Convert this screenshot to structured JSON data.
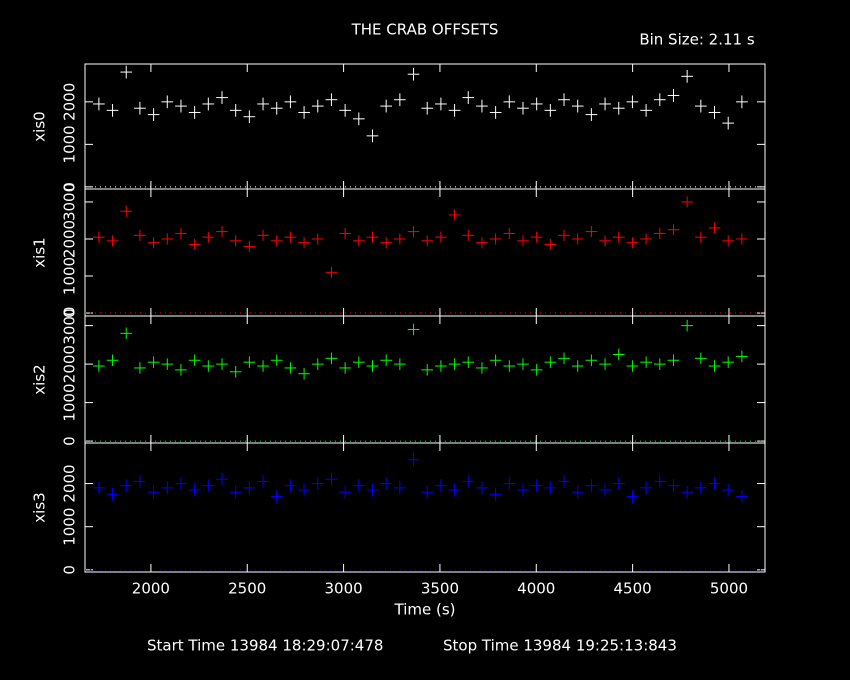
{
  "chart_data": {
    "type": "scatter",
    "title": "THE CRAB OFFSETS",
    "subtitle": "Bin Size: 2.11 s",
    "x_label": "Time (s)",
    "annotations": [
      "Start Time 13984 18:29:07:478",
      "Stop Time 13984 19:25:13:843"
    ],
    "xlim": [
      1658,
      5187
    ],
    "xticks": [
      2000,
      2500,
      3000,
      3500,
      4000,
      4500,
      5000
    ],
    "x": [
      1730,
      1801,
      1872,
      1943,
      2014,
      2085,
      2156,
      2227,
      2298,
      2369,
      2440,
      2511,
      2582,
      2653,
      2724,
      2795,
      2866,
      2937,
      3008,
      3079,
      3150,
      3221,
      3292,
      3363,
      3434,
      3505,
      3576,
      3647,
      3718,
      3789,
      3860,
      3931,
      4002,
      4073,
      4144,
      4215,
      4286,
      4357,
      4428,
      4499,
      4570,
      4641,
      4712,
      4783,
      4854,
      4925,
      4996,
      5067
    ],
    "series": [
      {
        "name": "xis0",
        "color": "#ffffff",
        "error": 150,
        "ylim": [
          -50,
          2890
        ],
        "yticks": [
          0,
          1000,
          2000
        ],
        "values": [
          1950,
          1800,
          2700,
          1850,
          1700,
          2000,
          1900,
          1750,
          1950,
          2100,
          1800,
          1650,
          1950,
          1850,
          2000,
          1750,
          1900,
          2050,
          1800,
          1600,
          1200,
          1900,
          2050,
          2650,
          1850,
          1950,
          1800,
          2100,
          1900,
          1750,
          2000,
          1850,
          1950,
          1800,
          2050,
          1900,
          1700,
          1950,
          1850,
          2000,
          1800,
          2050,
          2150,
          2600,
          1900,
          1750,
          1500,
          2000
        ]
      },
      {
        "name": "xis1",
        "color": "#ff0000",
        "error": 150,
        "ylim": [
          -80,
          3350
        ],
        "yticks": [
          0,
          1000,
          2000,
          3000
        ],
        "values": [
          2050,
          1950,
          2750,
          2100,
          1900,
          2000,
          2150,
          1850,
          2050,
          2200,
          1950,
          1800,
          2100,
          1950,
          2050,
          1900,
          2000,
          1100,
          2150,
          1950,
          2050,
          1900,
          2000,
          2200,
          1950,
          2050,
          2650,
          2100,
          1900,
          2000,
          2150,
          1950,
          2050,
          1850,
          2100,
          2000,
          2200,
          1950,
          2050,
          1900,
          2000,
          2150,
          2250,
          3000,
          2050,
          2300,
          1950,
          2000
        ]
      },
      {
        "name": "xis2",
        "color": "#00ff00",
        "error": 150,
        "ylim": [
          -50,
          3250
        ],
        "yticks": [
          0,
          1000,
          2000,
          3000
        ],
        "values": [
          1950,
          2100,
          2800,
          1900,
          2050,
          2000,
          1850,
          2100,
          1950,
          2000,
          1800,
          2050,
          1950,
          2100,
          1900,
          1750,
          2000,
          2150,
          1900,
          2050,
          1950,
          2100,
          2000,
          2900,
          1850,
          1950,
          2000,
          2050,
          1900,
          2100,
          1950,
          2000,
          1850,
          2050,
          2150,
          1950,
          2100,
          2000,
          2250,
          1950,
          2050,
          2000,
          2100,
          3000,
          2150,
          1950,
          2050,
          2200
        ]
      },
      {
        "name": "xis3",
        "color": "#0000ff",
        "error": 150,
        "ylim": [
          -50,
          2940
        ],
        "yticks": [
          0,
          1000,
          2000
        ],
        "values": [
          1900,
          1750,
          1950,
          2050,
          1800,
          1900,
          2000,
          1850,
          1950,
          2100,
          1800,
          1900,
          2050,
          1700,
          1950,
          1850,
          2000,
          2100,
          1800,
          1950,
          1850,
          2000,
          1900,
          2550,
          1800,
          1950,
          1850,
          2050,
          1900,
          1750,
          2000,
          1850,
          1950,
          1900,
          2050,
          1800,
          1950,
          1850,
          2000,
          1700,
          1900,
          2050,
          1950,
          1800,
          1900,
          2000,
          1850,
          1700
        ]
      }
    ]
  }
}
